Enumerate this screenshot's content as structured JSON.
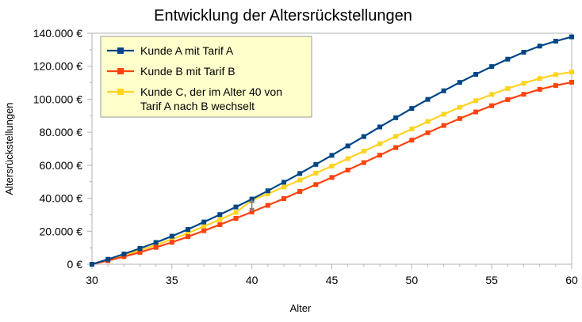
{
  "chart_data": {
    "type": "line",
    "title": "Entwicklung der Altersrückstellungen",
    "xlabel": "Alter",
    "ylabel": "Altersrückstellungen",
    "xlim": [
      30,
      60
    ],
    "ylim": [
      0,
      140000
    ],
    "x_ticks": [
      "30",
      "35",
      "40",
      "45",
      "50",
      "55",
      "60"
    ],
    "y_ticks": [
      "0 €",
      "20.000 €",
      "40.000 €",
      "60.000 €",
      "80.000 €",
      "100.000 €",
      "120.000 €",
      "140.000 €"
    ],
    "grid": false,
    "legend_position": "top-left",
    "x": [
      30,
      31,
      32,
      33,
      34,
      35,
      36,
      37,
      38,
      39,
      40,
      41,
      42,
      43,
      44,
      45,
      46,
      47,
      48,
      49,
      50,
      51,
      52,
      53,
      54,
      55,
      56,
      57,
      58,
      59,
      60
    ],
    "series": [
      {
        "name": "Kunde A mit Tarif A",
        "color": "#004586",
        "values": [
          0,
          3000,
          6200,
          9600,
          13200,
          17000,
          21100,
          25600,
          30100,
          34700,
          39500,
          44500,
          49700,
          55000,
          60500,
          66000,
          71700,
          77400,
          83200,
          88800,
          94400,
          99900,
          105100,
          110200,
          115100,
          119800,
          124300,
          128500,
          132200,
          135200,
          137800
        ]
      },
      {
        "name": "Kunde B mit Tarif B",
        "color": "#ff420e",
        "values": [
          0,
          2200,
          4600,
          7200,
          10200,
          13300,
          16700,
          20300,
          24000,
          27800,
          31700,
          35700,
          39800,
          44100,
          48300,
          52600,
          57100,
          61600,
          66100,
          70700,
          75200,
          79700,
          84100,
          88300,
          92300,
          96100,
          99800,
          103000,
          106000,
          108300,
          110300
        ]
      },
      {
        "name": "Kunde C, der im Alter 40 von Tarif A nach B wechselt",
        "color": "#ffd320",
        "values": [
          0,
          2600,
          5400,
          8400,
          11700,
          15100,
          18900,
          22900,
          27100,
          31400,
          38700,
          42700,
          46800,
          51000,
          55200,
          59500,
          64000,
          68500,
          73000,
          77500,
          82000,
          86500,
          90900,
          95100,
          99100,
          102900,
          106500,
          109700,
          112600,
          114900,
          116500
        ]
      }
    ],
    "annotations": [
      {
        "type": "double-arrow",
        "x": 40,
        "y_from": 31700,
        "y_to": 39500,
        "color": "#808080"
      }
    ]
  }
}
